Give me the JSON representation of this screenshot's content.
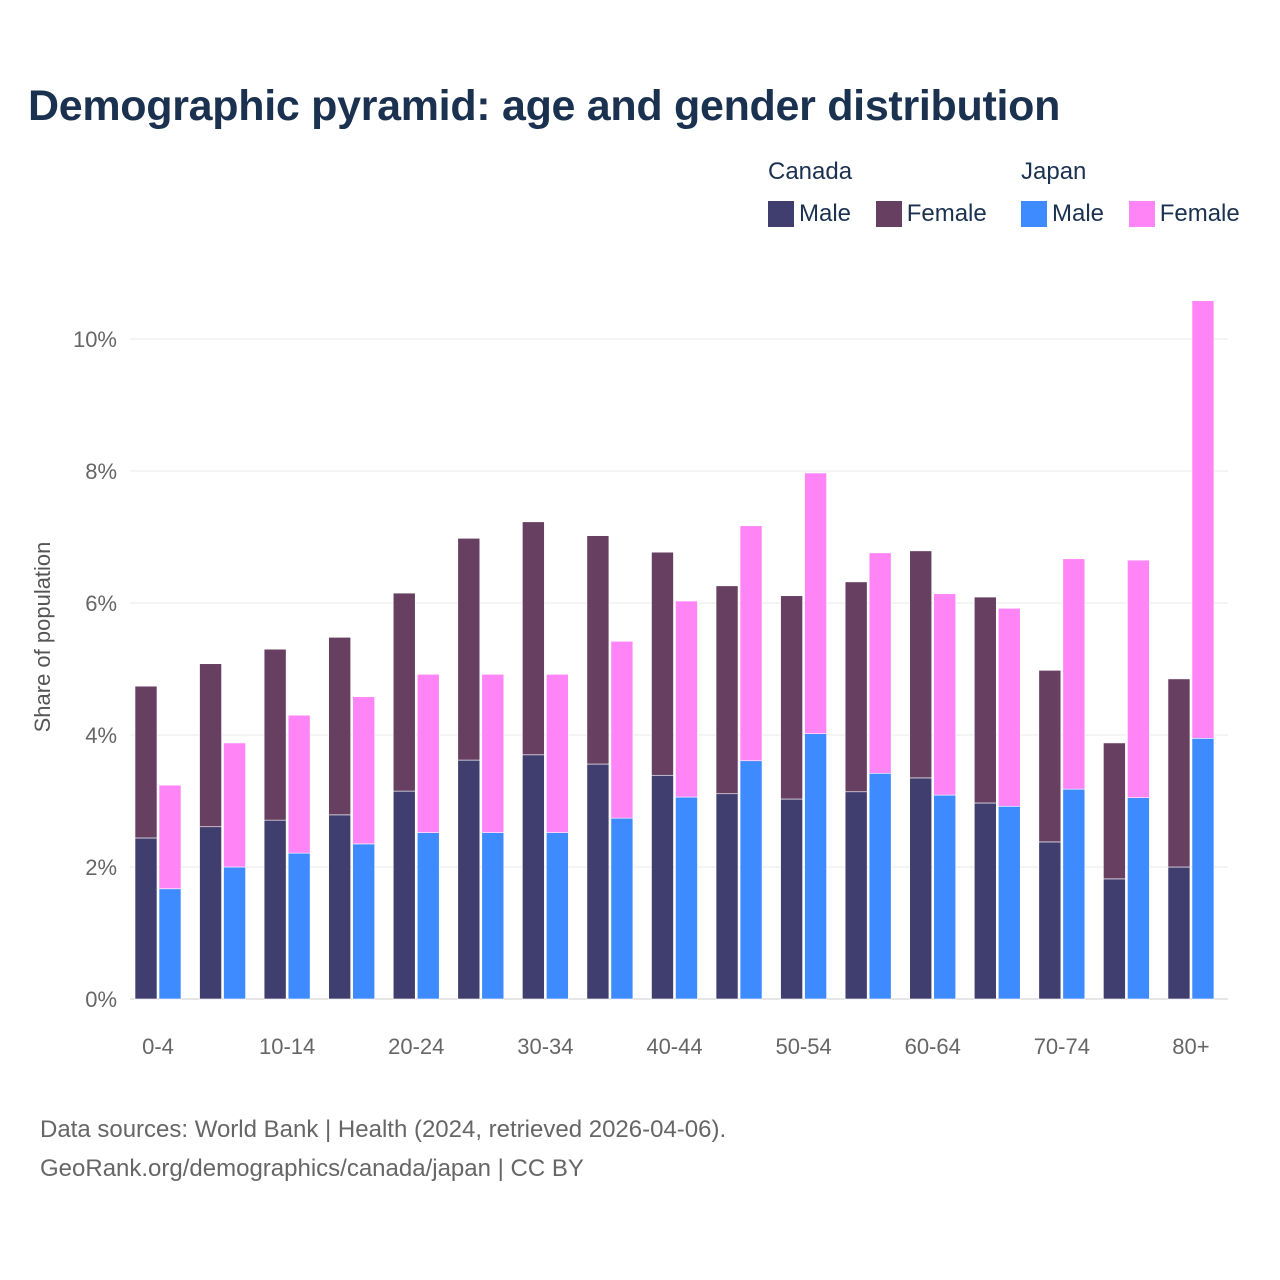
{
  "chart_data": {
    "type": "bar",
    "stacked": true,
    "title": "Demographic pyramid: age and gender distribution",
    "ylabel": "Share of population",
    "xlabel": "",
    "ylim": [
      0,
      10.6
    ],
    "y_ticks": [
      0,
      2,
      4,
      6,
      8,
      10
    ],
    "y_tick_labels": [
      "0%",
      "2%",
      "4%",
      "6%",
      "8%",
      "10%"
    ],
    "grid": true,
    "legend_position": "top-right",
    "categories": [
      "0-4",
      "5-9",
      "10-14",
      "15-19",
      "20-24",
      "25-29",
      "30-34",
      "35-39",
      "40-44",
      "45-49",
      "50-54",
      "55-59",
      "60-64",
      "65-69",
      "70-74",
      "75-79",
      "80+"
    ],
    "x_tick_labels": [
      "0-4",
      "10-14",
      "20-24",
      "30-34",
      "40-44",
      "50-54",
      "60-64",
      "70-74",
      "80+"
    ],
    "groups": [
      {
        "name": "Canada",
        "series": [
          {
            "name": "Male",
            "color": "#403d6f",
            "values": [
              2.44,
              2.61,
              2.71,
              2.79,
              3.15,
              3.62,
              3.7,
              3.56,
              3.39,
              3.11,
              3.03,
              3.14,
              3.35,
              2.97,
              2.38,
              1.82,
              2.0
            ]
          },
          {
            "name": "Female",
            "color": "#673f60",
            "values": [
              2.3,
              2.47,
              2.59,
              2.69,
              3.0,
              3.36,
              3.53,
              3.46,
              3.38,
              3.15,
              3.08,
              3.18,
              3.44,
              3.12,
              2.6,
              2.06,
              2.85
            ]
          }
        ]
      },
      {
        "name": "Japan",
        "series": [
          {
            "name": "Male",
            "color": "#3e8bff",
            "values": [
              1.67,
              2.0,
              2.21,
              2.35,
              2.52,
              2.52,
              2.52,
              2.74,
              3.06,
              3.61,
              4.02,
              3.42,
              3.09,
              2.92,
              3.18,
              3.05,
              3.95
            ]
          },
          {
            "name": "Female",
            "color": "#ff85f6",
            "values": [
              1.57,
              1.88,
              2.09,
              2.23,
              2.4,
              2.4,
              2.4,
              2.68,
              2.97,
              3.56,
              3.95,
              3.34,
              3.05,
              3.0,
              3.49,
              3.6,
              6.63
            ]
          }
        ]
      }
    ]
  },
  "footer": {
    "line1": "Data sources: World Bank | Health (2024, retrieved 2026-04-06).",
    "line2": "GeoRank.org/demographics/canada/japan | CC BY"
  }
}
